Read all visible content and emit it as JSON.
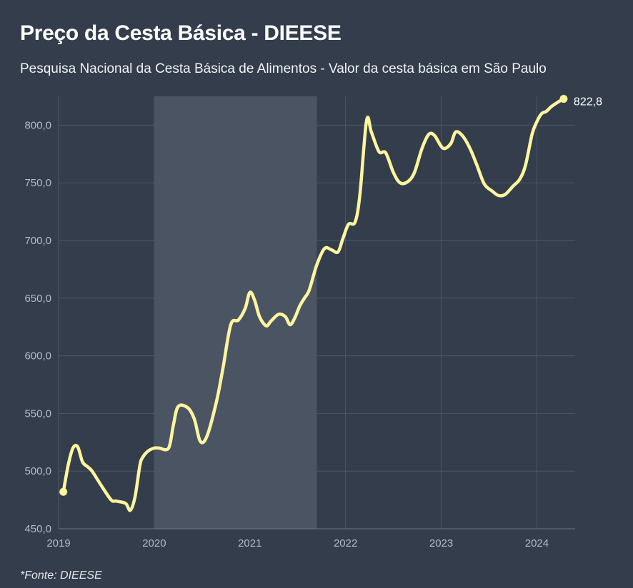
{
  "title": "Preço da Cesta Básica - DIEESE",
  "subtitle": "Pesquisa Nacional da Cesta Básica de Alimentos - Valor da cesta básica em São Paulo",
  "source": "*Fonte: DIEESE",
  "colors": {
    "background": "#333d4c",
    "line": "#fff59d",
    "grid": "#4d5766",
    "shade": "#4a5463",
    "axis_text": "#b5bcc7",
    "last_label": "#ffffff"
  },
  "chart_data": {
    "type": "line",
    "title": "Preço da Cesta Básica - DIEESE",
    "subtitle": "Pesquisa Nacional da Cesta Básica de Alimentos - Valor da cesta básica em São Paulo",
    "xlabel": "",
    "ylabel": "",
    "xlim": [
      2019.0,
      2024.4
    ],
    "ylim": [
      450,
      825
    ],
    "x_ticks": [
      2019,
      2020,
      2021,
      2022,
      2023,
      2024
    ],
    "x_tick_labels": [
      "2019",
      "2020",
      "2021",
      "2022",
      "2023",
      "2024"
    ],
    "y_ticks": [
      450,
      500,
      550,
      600,
      650,
      700,
      750,
      800
    ],
    "y_tick_labels": [
      "450,0",
      "500,0",
      "550,0",
      "600,0",
      "650,0",
      "700,0",
      "750,0",
      "800,0"
    ],
    "grid": true,
    "shaded_region": [
      2020.0,
      2021.7
    ],
    "last_value_label": "822,8",
    "series": [
      {
        "x": [
          2019.05,
          2019.1,
          2019.15,
          2019.2,
          2019.25,
          2019.3,
          2019.35,
          2019.45,
          2019.55,
          2019.6,
          2019.7,
          2019.75,
          2019.8,
          2019.85,
          2019.88,
          2019.93,
          2020.0,
          2020.05,
          2020.15,
          2020.2,
          2020.25,
          2020.35,
          2020.42,
          2020.48,
          2020.55,
          2020.65,
          2020.72,
          2020.8,
          2020.88,
          2020.95,
          2021.0,
          2021.05,
          2021.1,
          2021.17,
          2021.22,
          2021.3,
          2021.37,
          2021.42,
          2021.47,
          2021.52,
          2021.57,
          2021.62,
          2021.7,
          2021.78,
          2021.85,
          2021.92,
          2021.97,
          2022.03,
          2022.1,
          2022.15,
          2022.22,
          2022.27,
          2022.35,
          2022.42,
          2022.5,
          2022.57,
          2022.65,
          2022.72,
          2022.8,
          2022.87,
          2022.93,
          2023.02,
          2023.1,
          2023.15,
          2023.22,
          2023.3,
          2023.37,
          2023.45,
          2023.53,
          2023.6,
          2023.67,
          2023.75,
          2023.82,
          2023.88,
          2023.95,
          2024.0,
          2024.05,
          2024.1,
          2024.15,
          2024.22,
          2024.28
        ],
        "y": [
          482,
          505,
          520,
          521,
          508,
          504,
          500,
          487,
          475,
          474,
          472,
          466,
          478,
          505,
          512,
          517,
          520,
          520,
          520,
          540,
          556,
          555,
          545,
          526,
          530,
          560,
          590,
          627,
          631,
          641,
          655,
          648,
          634,
          626,
          630,
          636,
          634,
          627,
          633,
          643,
          650,
          657,
          679,
          693,
          692,
          690,
          701,
          714,
          716,
          740,
          804,
          794,
          777,
          776,
          759,
          750,
          751,
          759,
          780,
          792,
          791,
          780,
          784,
          794,
          791,
          780,
          766,
          749,
          743,
          739,
          740,
          747,
          753,
          765,
          792,
          803,
          810,
          812,
          816,
          820,
          822.8
        ]
      }
    ]
  }
}
